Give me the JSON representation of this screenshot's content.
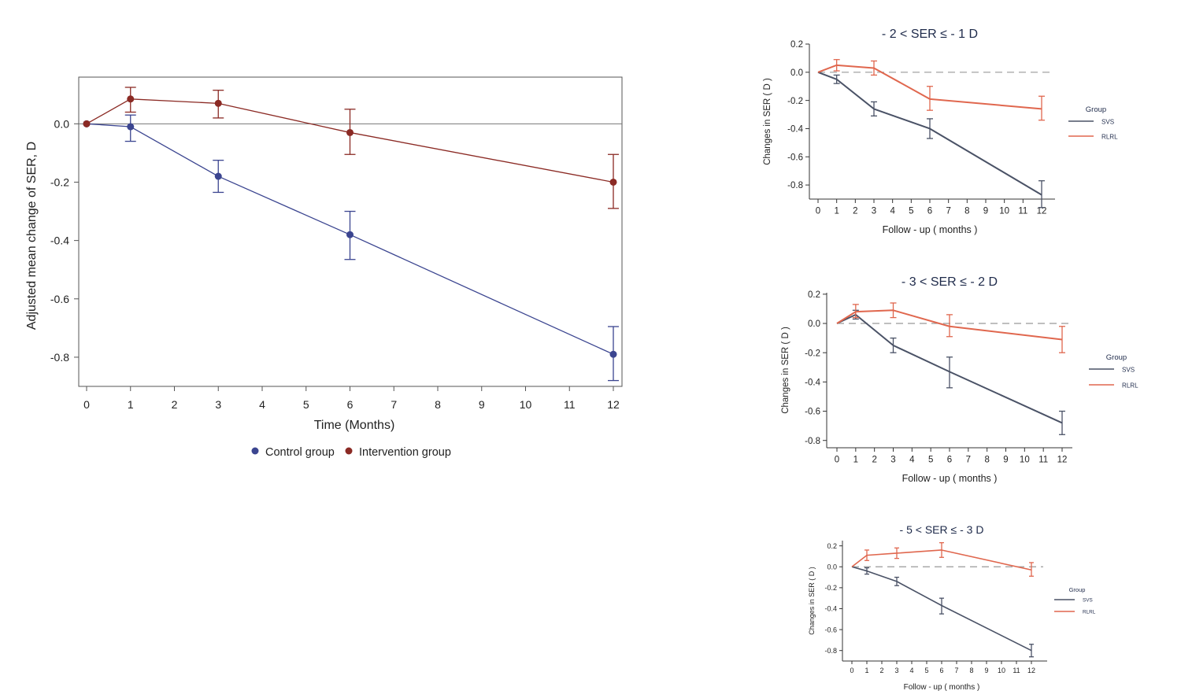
{
  "chart_data": [
    {
      "type": "line",
      "title": "",
      "xlabel": "Time (Months)",
      "ylabel": "Adjusted mean change of SER, D",
      "xlim": [
        -0.3,
        12.2
      ],
      "ylim": [
        -0.9,
        0.16
      ],
      "x_ticks": [
        0,
        1,
        2,
        3,
        4,
        5,
        6,
        7,
        8,
        9,
        10,
        11,
        12
      ],
      "y_ticks": [
        0.0,
        -0.2,
        -0.4,
        -0.6,
        -0.8
      ],
      "y_tick_labels": [
        "0.0",
        "-0.2",
        "-0.4",
        "-0.6",
        "-0.8"
      ],
      "reference_line": 0,
      "x": [
        0,
        1,
        3,
        6,
        12
      ],
      "series": [
        {
          "name": "Control group",
          "color": "#3b4590",
          "values": [
            0.0,
            -0.01,
            -0.18,
            -0.38,
            -0.79
          ],
          "lower": [
            0.0,
            -0.06,
            -0.235,
            -0.465,
            -0.88
          ],
          "upper": [
            0.0,
            0.03,
            -0.125,
            -0.3,
            -0.695
          ]
        },
        {
          "name": "Intervention group",
          "color": "#8b2a24",
          "values": [
            0.0,
            0.085,
            0.07,
            -0.03,
            -0.2
          ],
          "lower": [
            0.0,
            0.04,
            0.02,
            -0.105,
            -0.29
          ],
          "upper": [
            0.0,
            0.125,
            0.115,
            0.05,
            -0.105
          ]
        }
      ],
      "legend_position": "bottom"
    },
    {
      "type": "line",
      "title": "- 2 < SER ≤ - 1 D",
      "xlabel": "Follow - up ( months )",
      "ylabel": "Changes in SER ( D )",
      "xlim": [
        -0.3,
        12.5
      ],
      "ylim": [
        -0.9,
        0.2
      ],
      "x_ticks": [
        0,
        1,
        2,
        3,
        4,
        5,
        6,
        7,
        8,
        9,
        10,
        11,
        12
      ],
      "y_ticks": [
        0.2,
        0.0,
        -0.2,
        -0.4,
        -0.6,
        -0.8
      ],
      "y_tick_labels": [
        "0.2",
        "0.0",
        "-0.2",
        "-0.4",
        "-0.6",
        "-0.8"
      ],
      "reference_line": 0,
      "x": [
        0,
        1,
        3,
        6,
        12
      ],
      "legend_title": "Group",
      "series": [
        {
          "name": "SVS",
          "color": "#4a5266",
          "values": [
            0.0,
            -0.05,
            -0.26,
            -0.4,
            -0.87
          ],
          "lower": [
            0.0,
            -0.08,
            -0.31,
            -0.47,
            -0.96
          ],
          "upper": [
            0.0,
            -0.02,
            -0.21,
            -0.33,
            -0.77
          ]
        },
        {
          "name": "RLRL",
          "color": "#e0674e",
          "values": [
            0.0,
            0.05,
            0.03,
            -0.19,
            -0.26
          ],
          "lower": [
            0.0,
            0.01,
            -0.02,
            -0.27,
            -0.34
          ],
          "upper": [
            0.0,
            0.09,
            0.08,
            -0.1,
            -0.17
          ]
        }
      ],
      "legend_position": "right"
    },
    {
      "type": "line",
      "title": "- 3 < SER ≤ - 2 D",
      "xlabel": "Follow - up ( months )",
      "ylabel": "Changes in SER ( D )",
      "xlim": [
        -0.3,
        12.5
      ],
      "ylim": [
        -0.85,
        0.21
      ],
      "x_ticks": [
        0,
        1,
        2,
        3,
        4,
        5,
        6,
        7,
        8,
        9,
        10,
        11,
        12
      ],
      "y_ticks": [
        0.2,
        0.0,
        -0.2,
        -0.4,
        -0.6,
        -0.8
      ],
      "y_tick_labels": [
        "0.2",
        "0.0",
        "-0.2",
        "-0.4",
        "-0.6",
        "-0.8"
      ],
      "reference_line": 0,
      "x": [
        0,
        1,
        3,
        6,
        12
      ],
      "legend_title": "Group",
      "series": [
        {
          "name": "SVS",
          "color": "#4a5266",
          "values": [
            0.0,
            0.06,
            -0.15,
            -0.33,
            -0.68
          ],
          "lower": [
            0.0,
            0.03,
            -0.2,
            -0.44,
            -0.76
          ],
          "upper": [
            0.0,
            0.09,
            -0.1,
            -0.23,
            -0.6
          ]
        },
        {
          "name": "RLRL",
          "color": "#e0674e",
          "values": [
            0.0,
            0.08,
            0.09,
            -0.02,
            -0.11
          ],
          "lower": [
            0.0,
            0.04,
            0.04,
            -0.09,
            -0.2
          ],
          "upper": [
            0.0,
            0.13,
            0.14,
            0.06,
            -0.02
          ]
        }
      ],
      "legend_position": "right"
    },
    {
      "type": "line",
      "title": "- 5 < SER ≤ - 3 D",
      "xlabel": "Follow - up ( months )",
      "ylabel": "Changes in SER ( D )",
      "xlim": [
        -0.3,
        12.5
      ],
      "ylim": [
        -0.9,
        0.25
      ],
      "x_ticks": [
        0,
        1,
        2,
        3,
        4,
        5,
        6,
        7,
        8,
        9,
        10,
        11,
        12
      ],
      "y_ticks": [
        0.2,
        0.0,
        -0.2,
        -0.4,
        -0.6,
        -0.8
      ],
      "y_tick_labels": [
        "0.2",
        "0.0",
        "-0.2",
        "-0.4",
        "-0.6",
        "-0.8"
      ],
      "reference_line": 0,
      "x": [
        0,
        1,
        3,
        6,
        12
      ],
      "legend_title": "Group",
      "series": [
        {
          "name": "SVS",
          "color": "#4a5266",
          "values": [
            0.0,
            -0.04,
            -0.14,
            -0.37,
            -0.8
          ],
          "lower": [
            0.0,
            -0.07,
            -0.18,
            -0.45,
            -0.86
          ],
          "upper": [
            0.0,
            -0.01,
            -0.1,
            -0.3,
            -0.74
          ]
        },
        {
          "name": "RLRL",
          "color": "#e0674e",
          "values": [
            0.0,
            0.11,
            0.13,
            0.16,
            -0.03
          ],
          "lower": [
            0.0,
            0.06,
            0.08,
            0.09,
            -0.09
          ],
          "upper": [
            0.0,
            0.16,
            0.18,
            0.23,
            0.04
          ]
        }
      ],
      "legend_position": "right"
    }
  ]
}
